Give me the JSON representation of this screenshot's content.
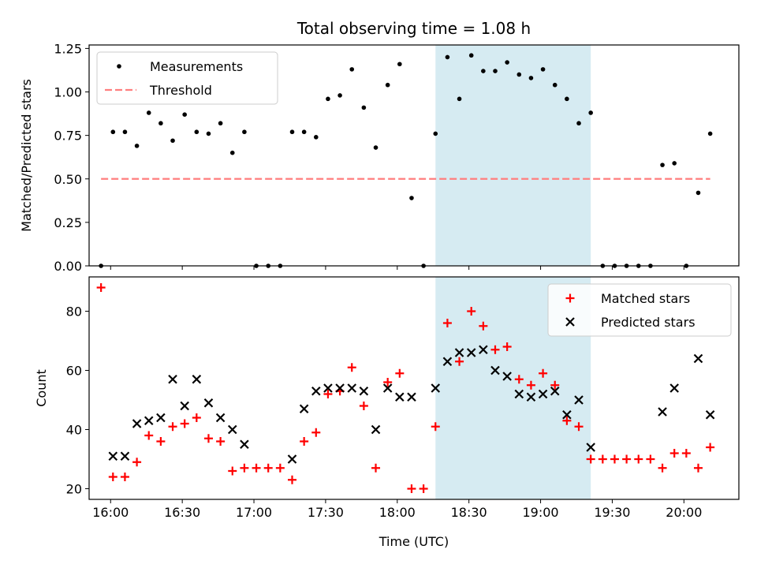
{
  "chart_data": [
    {
      "type": "scatter",
      "title": "Total observing time = 1.08 h",
      "ylabel": "Matched/Predicted stars",
      "xlabel": "",
      "x_ticks": [
        "16:00",
        "16:30",
        "17:00",
        "17:30",
        "18:00",
        "18:30",
        "19:00",
        "19:30",
        "20:00"
      ],
      "xlim": [
        "15:51",
        "20:23"
      ],
      "ylim": [
        0,
        1.27
      ],
      "y_ticks": [
        "0.00",
        "0.25",
        "0.50",
        "0.75",
        "1.00",
        "1.25"
      ],
      "highlight_span": [
        "18:16",
        "19:21"
      ],
      "legend_position": "upper left",
      "series": [
        {
          "name": "Measurements",
          "color": "#000000",
          "marker": "dot",
          "points": [
            [
              "15:56",
              0.0
            ],
            [
              "16:01",
              0.77
            ],
            [
              "16:06",
              0.77
            ],
            [
              "16:11",
              0.69
            ],
            [
              "16:16",
              0.88
            ],
            [
              "16:21",
              0.82
            ],
            [
              "16:26",
              0.72
            ],
            [
              "16:31",
              0.87
            ],
            [
              "16:36",
              0.77
            ],
            [
              "16:41",
              0.76
            ],
            [
              "16:46",
              0.82
            ],
            [
              "16:51",
              0.65
            ],
            [
              "16:56",
              0.77
            ],
            [
              "17:01",
              0.0
            ],
            [
              "17:06",
              0.0
            ],
            [
              "17:11",
              0.0
            ],
            [
              "17:16",
              0.77
            ],
            [
              "17:21",
              0.77
            ],
            [
              "17:26",
              0.74
            ],
            [
              "17:31",
              0.96
            ],
            [
              "17:36",
              0.98
            ],
            [
              "17:41",
              1.13
            ],
            [
              "17:46",
              0.91
            ],
            [
              "17:51",
              0.68
            ],
            [
              "17:56",
              1.04
            ],
            [
              "18:01",
              1.16
            ],
            [
              "18:06",
              0.39
            ],
            [
              "18:11",
              0.0
            ],
            [
              "18:16",
              0.76
            ],
            [
              "18:21",
              1.2
            ],
            [
              "18:26",
              0.96
            ],
            [
              "18:31",
              1.21
            ],
            [
              "18:36",
              1.12
            ],
            [
              "18:41",
              1.12
            ],
            [
              "18:46",
              1.17
            ],
            [
              "18:51",
              1.1
            ],
            [
              "18:56",
              1.08
            ],
            [
              "19:01",
              1.13
            ],
            [
              "19:06",
              1.04
            ],
            [
              "19:11",
              0.96
            ],
            [
              "19:16",
              0.82
            ],
            [
              "19:21",
              0.88
            ],
            [
              "19:26",
              0.0
            ],
            [
              "19:31",
              0.0
            ],
            [
              "19:36",
              0.0
            ],
            [
              "19:41",
              0.0
            ],
            [
              "19:46",
              0.0
            ],
            [
              "19:51",
              0.58
            ],
            [
              "19:56",
              0.59
            ],
            [
              "20:01",
              0.0
            ],
            [
              "20:06",
              0.42
            ],
            [
              "20:11",
              0.76
            ]
          ]
        },
        {
          "name": "Threshold",
          "color": "#ff7f7f",
          "line": "dashed",
          "points": [
            [
              "15:56",
              0.5
            ],
            [
              "20:11",
              0.5
            ]
          ]
        }
      ]
    },
    {
      "type": "scatter",
      "title": "",
      "ylabel": "Count",
      "xlabel": "Time (UTC)",
      "x_ticks": [
        "16:00",
        "16:30",
        "17:00",
        "17:30",
        "18:00",
        "18:30",
        "19:00",
        "19:30",
        "20:00"
      ],
      "xlim": [
        "15:51",
        "20:23"
      ],
      "ylim": [
        16.4,
        91.6
      ],
      "y_ticks": [
        "20",
        "40",
        "60",
        "80"
      ],
      "highlight_span": [
        "18:16",
        "19:21"
      ],
      "legend_position": "upper right",
      "series": [
        {
          "name": "Matched stars",
          "color": "#ff0000",
          "marker": "plus",
          "points": [
            [
              "15:56",
              88
            ],
            [
              "16:01",
              24
            ],
            [
              "16:06",
              24
            ],
            [
              "16:11",
              29
            ],
            [
              "16:16",
              38
            ],
            [
              "16:21",
              36
            ],
            [
              "16:26",
              41
            ],
            [
              "16:31",
              42
            ],
            [
              "16:36",
              44
            ],
            [
              "16:41",
              37
            ],
            [
              "16:46",
              36
            ],
            [
              "16:51",
              26
            ],
            [
              "16:56",
              27
            ],
            [
              "17:01",
              27
            ],
            [
              "17:06",
              27
            ],
            [
              "17:11",
              27
            ],
            [
              "17:16",
              23
            ],
            [
              "17:21",
              36
            ],
            [
              "17:26",
              39
            ],
            [
              "17:31",
              52
            ],
            [
              "17:36",
              53
            ],
            [
              "17:41",
              61
            ],
            [
              "17:46",
              48
            ],
            [
              "17:51",
              27
            ],
            [
              "17:56",
              56
            ],
            [
              "18:01",
              59
            ],
            [
              "18:06",
              20
            ],
            [
              "18:11",
              20
            ],
            [
              "18:16",
              41
            ],
            [
              "18:21",
              76
            ],
            [
              "18:26",
              63
            ],
            [
              "18:31",
              80
            ],
            [
              "18:36",
              75
            ],
            [
              "18:41",
              67
            ],
            [
              "18:46",
              68
            ],
            [
              "18:51",
              57
            ],
            [
              "18:56",
              55
            ],
            [
              "19:01",
              59
            ],
            [
              "19:06",
              55
            ],
            [
              "19:11",
              43
            ],
            [
              "19:16",
              41
            ],
            [
              "19:21",
              30
            ],
            [
              "19:26",
              30
            ],
            [
              "19:31",
              30
            ],
            [
              "19:36",
              30
            ],
            [
              "19:41",
              30
            ],
            [
              "19:46",
              30
            ],
            [
              "19:51",
              27
            ],
            [
              "19:56",
              32
            ],
            [
              "20:01",
              32
            ],
            [
              "20:06",
              27
            ],
            [
              "20:11",
              34
            ]
          ]
        },
        {
          "name": "Predicted stars",
          "color": "#000000",
          "marker": "x",
          "points": [
            [
              "16:01",
              31
            ],
            [
              "16:06",
              31
            ],
            [
              "16:11",
              42
            ],
            [
              "16:16",
              43
            ],
            [
              "16:21",
              44
            ],
            [
              "16:26",
              57
            ],
            [
              "16:31",
              48
            ],
            [
              "16:36",
              57
            ],
            [
              "16:41",
              49
            ],
            [
              "16:46",
              44
            ],
            [
              "16:51",
              40
            ],
            [
              "16:56",
              35
            ],
            [
              "17:16",
              30
            ],
            [
              "17:21",
              47
            ],
            [
              "17:26",
              53
            ],
            [
              "17:31",
              54
            ],
            [
              "17:36",
              54
            ],
            [
              "17:41",
              54
            ],
            [
              "17:46",
              53
            ],
            [
              "17:51",
              40
            ],
            [
              "17:56",
              54
            ],
            [
              "18:01",
              51
            ],
            [
              "18:06",
              51
            ],
            [
              "18:16",
              54
            ],
            [
              "18:21",
              63
            ],
            [
              "18:26",
              66
            ],
            [
              "18:31",
              66
            ],
            [
              "18:36",
              67
            ],
            [
              "18:41",
              60
            ],
            [
              "18:46",
              58
            ],
            [
              "18:51",
              52
            ],
            [
              "18:56",
              51
            ],
            [
              "19:01",
              52
            ],
            [
              "19:06",
              53
            ],
            [
              "19:11",
              45
            ],
            [
              "19:16",
              50
            ],
            [
              "19:21",
              34
            ],
            [
              "19:51",
              46
            ],
            [
              "19:56",
              54
            ],
            [
              "20:06",
              64
            ],
            [
              "20:11",
              45
            ]
          ]
        }
      ]
    }
  ],
  "colors": {
    "highlight": "#add8e6",
    "highlight_opacity": 0.5
  }
}
